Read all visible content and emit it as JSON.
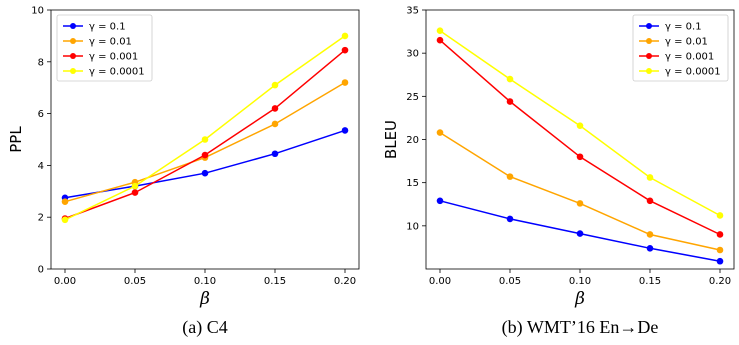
{
  "chart_data": [
    {
      "type": "line",
      "caption": "(a) C4",
      "xlabel": "β",
      "ylabel": "PPL",
      "x": [
        0.0,
        0.05,
        0.1,
        0.15,
        0.2
      ],
      "xticks": [
        "0.00",
        "0.05",
        "0.10",
        "0.15",
        "0.20"
      ],
      "xlim": [
        -0.01,
        0.21
      ],
      "ylim": [
        0,
        10
      ],
      "yticks": [
        "0",
        "2",
        "4",
        "6",
        "8",
        "10"
      ],
      "legend_position": "top-left",
      "series": [
        {
          "name": "γ = 0.1",
          "color": "#0000ff",
          "values": [
            2.75,
            3.2,
            3.7,
            4.45,
            5.35
          ]
        },
        {
          "name": "γ = 0.01",
          "color": "#ffa500",
          "values": [
            2.6,
            3.35,
            4.3,
            5.6,
            7.2
          ]
        },
        {
          "name": "γ = 0.001",
          "color": "#ff0000",
          "values": [
            1.95,
            2.95,
            4.4,
            6.2,
            8.45
          ]
        },
        {
          "name": "γ = 0.0001",
          "color": "#ffff00",
          "values": [
            1.9,
            3.2,
            5.0,
            7.1,
            9.0
          ]
        }
      ]
    },
    {
      "type": "line",
      "caption": "(b) WMT’16 En→De",
      "xlabel": "β",
      "ylabel": "BLEU",
      "x": [
        0.0,
        0.05,
        0.1,
        0.15,
        0.2
      ],
      "xticks": [
        "0.00",
        "0.05",
        "0.10",
        "0.15",
        "0.20"
      ],
      "xlim": [
        -0.01,
        0.21
      ],
      "ylim": [
        5,
        35
      ],
      "yticks": [
        "10",
        "15",
        "20",
        "25",
        "30",
        "35"
      ],
      "legend_position": "top-right",
      "series": [
        {
          "name": "γ = 0.1",
          "color": "#0000ff",
          "values": [
            12.9,
            10.8,
            9.1,
            7.4,
            5.9
          ]
        },
        {
          "name": "γ = 0.01",
          "color": "#ffa500",
          "values": [
            20.8,
            15.7,
            12.6,
            9.0,
            7.2
          ]
        },
        {
          "name": "γ = 0.001",
          "color": "#ff0000",
          "values": [
            31.5,
            24.4,
            18.0,
            12.9,
            9.0
          ]
        },
        {
          "name": "γ = 0.0001",
          "color": "#ffff00",
          "values": [
            32.6,
            27.0,
            21.6,
            15.6,
            11.2
          ]
        }
      ]
    }
  ]
}
